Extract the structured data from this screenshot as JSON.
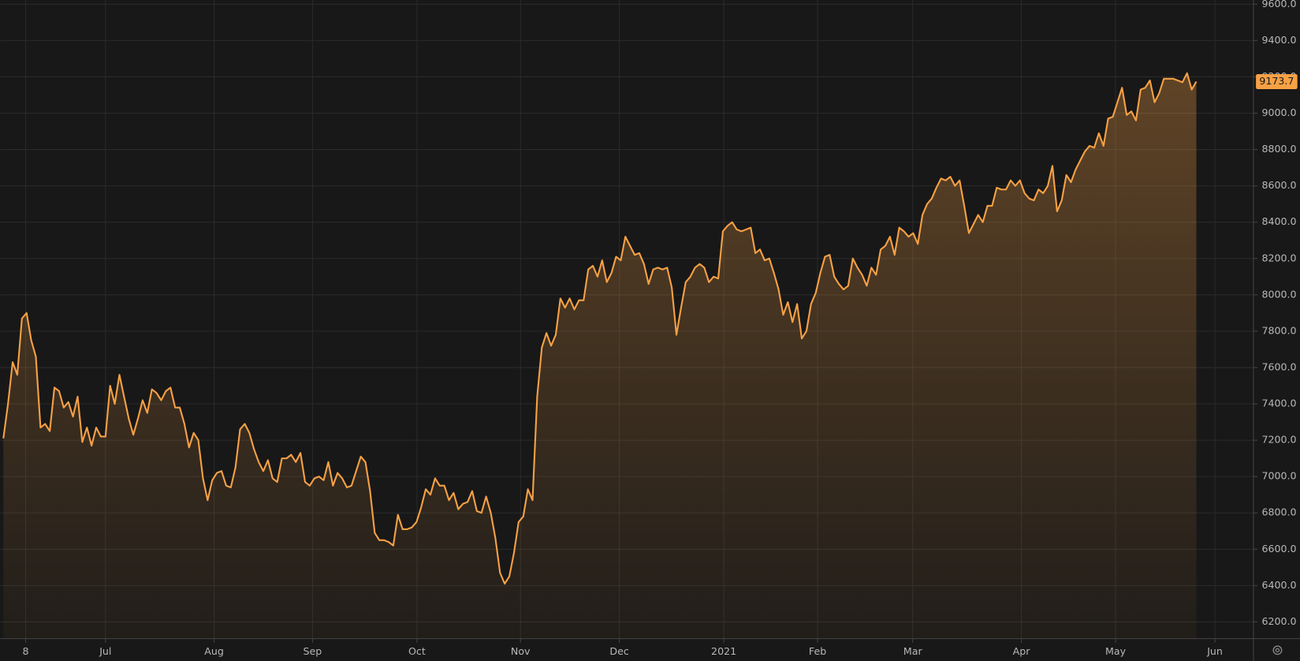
{
  "chart_data": {
    "type": "line",
    "grid": true,
    "xlim": [
      -0.7,
      269.3
    ],
    "ylim": [
      6108,
      9623
    ],
    "xticks": [
      {
        "value": 4.8,
        "label": "8"
      },
      {
        "value": 22,
        "label": "Jul"
      },
      {
        "value": 45.4,
        "label": "Aug"
      },
      {
        "value": 66.6,
        "label": "Sep"
      },
      {
        "value": 89.1,
        "label": "Oct"
      },
      {
        "value": 111.4,
        "label": "Nov"
      },
      {
        "value": 132.7,
        "label": "Dec"
      },
      {
        "value": 155.2,
        "label": "2021"
      },
      {
        "value": 175.4,
        "label": "Feb"
      },
      {
        "value": 195.9,
        "label": "Mar"
      },
      {
        "value": 219.3,
        "label": "Apr"
      },
      {
        "value": 239.6,
        "label": "May"
      },
      {
        "value": 261,
        "label": "Jun"
      }
    ],
    "yticks": [
      {
        "value": 6200,
        "label": "6200.0"
      },
      {
        "value": 6400,
        "label": "6400.0"
      },
      {
        "value": 6600,
        "label": "6600.0"
      },
      {
        "value": 6800,
        "label": "6800.0"
      },
      {
        "value": 7000,
        "label": "7000.0"
      },
      {
        "value": 7200,
        "label": "7200.0"
      },
      {
        "value": 7400,
        "label": "7400.0"
      },
      {
        "value": 7600,
        "label": "7600.0"
      },
      {
        "value": 7800,
        "label": "7800.0"
      },
      {
        "value": 8000,
        "label": "8000.0"
      },
      {
        "value": 8200,
        "label": "8200.0"
      },
      {
        "value": 8400,
        "label": "8400.0"
      },
      {
        "value": 8600,
        "label": "8600.0"
      },
      {
        "value": 8800,
        "label": "8800.0"
      },
      {
        "value": 9000,
        "label": "9000.0"
      },
      {
        "value": 9200,
        "label": "9200.0"
      },
      {
        "value": 9400,
        "label": "9400.0"
      },
      {
        "value": 9600,
        "label": "9600.0"
      }
    ],
    "series": [
      {
        "color": "#f7a145",
        "values": [
          7210,
          7400,
          7630,
          7560,
          7870,
          7900,
          7750,
          7660,
          7270,
          7290,
          7250,
          7490,
          7470,
          7380,
          7410,
          7330,
          7440,
          7190,
          7270,
          7170,
          7270,
          7220,
          7220,
          7500,
          7400,
          7560,
          7440,
          7320,
          7230,
          7320,
          7420,
          7350,
          7480,
          7460,
          7420,
          7470,
          7490,
          7380,
          7380,
          7290,
          7160,
          7240,
          7200,
          6990,
          6870,
          6980,
          7020,
          7030,
          6950,
          6940,
          7050,
          7260,
          7290,
          7240,
          7150,
          7080,
          7030,
          7090,
          6990,
          6970,
          7100,
          7100,
          7120,
          7080,
          7130,
          6970,
          6950,
          6990,
          7000,
          6980,
          7080,
          6950,
          7020,
          6990,
          6940,
          6950,
          7030,
          7110,
          7080,
          6920,
          6690,
          6650,
          6650,
          6640,
          6620,
          6790,
          6710,
          6710,
          6720,
          6750,
          6830,
          6930,
          6900,
          6990,
          6950,
          6950,
          6870,
          6910,
          6820,
          6850,
          6860,
          6920,
          6810,
          6800,
          6890,
          6800,
          6660,
          6470,
          6410,
          6450,
          6580,
          6750,
          6780,
          6930,
          6870,
          7440,
          7710,
          7790,
          7720,
          7780,
          7980,
          7930,
          7980,
          7920,
          7970,
          7970,
          8140,
          8160,
          8100,
          8190,
          8070,
          8120,
          8210,
          8190,
          8320,
          8270,
          8220,
          8230,
          8170,
          8060,
          8140,
          8150,
          8140,
          8150,
          8040,
          7780,
          7930,
          8070,
          8100,
          8150,
          8170,
          8150,
          8070,
          8100,
          8090,
          8350,
          8380,
          8400,
          8360,
          8350,
          8360,
          8370,
          8230,
          8250,
          8190,
          8200,
          8120,
          8030,
          7890,
          7960,
          7850,
          7950,
          7760,
          7800,
          7950,
          8010,
          8120,
          8210,
          8220,
          8100,
          8060,
          8030,
          8050,
          8200,
          8150,
          8110,
          8050,
          8150,
          8110,
          8250,
          8270,
          8320,
          8220,
          8370,
          8350,
          8320,
          8340,
          8280,
          8440,
          8500,
          8530,
          8590,
          8640,
          8630,
          8650,
          8600,
          8630,
          8490,
          8340,
          8390,
          8440,
          8400,
          8490,
          8490,
          8590,
          8580,
          8580,
          8630,
          8600,
          8630,
          8560,
          8530,
          8520,
          8580,
          8560,
          8600,
          8710,
          8460,
          8520,
          8660,
          8620,
          8690,
          8740,
          8790,
          8820,
          8810,
          8890,
          8820,
          8970,
          8980,
          9060,
          9140,
          8990,
          9010,
          8960,
          9130,
          9140,
          9180,
          9060,
          9110,
          9190,
          9190,
          9190,
          9180,
          9170,
          9220,
          9130,
          9173.7
        ]
      }
    ]
  }
}
